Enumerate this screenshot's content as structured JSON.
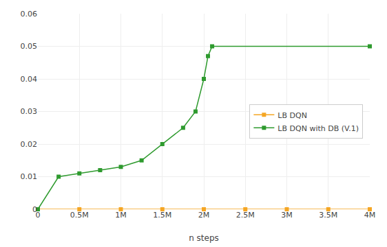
{
  "chart_data": {
    "type": "line",
    "x_label": "n steps",
    "series": [
      {
        "name": "LB DQN",
        "color": "#f5a623",
        "x": [
          0,
          500000,
          1000000,
          1500000,
          2000000,
          2500000,
          3000000,
          3500000,
          4000000
        ],
        "values": [
          0,
          0,
          0,
          0,
          0,
          0,
          0,
          0,
          0
        ]
      },
      {
        "name": "LB DQN with DB (V.1)",
        "color": "#2e9a2e",
        "x": [
          0,
          250000,
          500000,
          750000,
          1000000,
          1250000,
          1500000,
          1750000,
          1900000,
          2000000,
          2050000,
          2100000,
          4000000
        ],
        "values": [
          0,
          0.01,
          0.011,
          0.012,
          0.013,
          0.015,
          0.02,
          0.025,
          0.03,
          0.04,
          0.047,
          0.05,
          0.05
        ]
      }
    ],
    "xlim": [
      0,
      4000000
    ],
    "xticks": [
      0,
      {
        "value": 500000,
        "label": "0.5M"
      },
      {
        "value": 1000000,
        "label": "1M"
      },
      {
        "value": 1500000,
        "label": "1.5M"
      },
      {
        "value": 2000000,
        "label": "2M"
      },
      {
        "value": 2500000,
        "label": "2.5M"
      },
      {
        "value": 3000000,
        "label": "3M"
      },
      {
        "value": 3500000,
        "label": "3.5M"
      },
      {
        "value": 4000000,
        "label": "4M"
      }
    ],
    "ylim": [
      0,
      0.06
    ],
    "yticks": [
      0,
      0.01,
      0.02,
      0.03,
      0.04,
      0.05,
      0.06
    ],
    "grid": true,
    "legend": "right",
    "marker": "square"
  }
}
